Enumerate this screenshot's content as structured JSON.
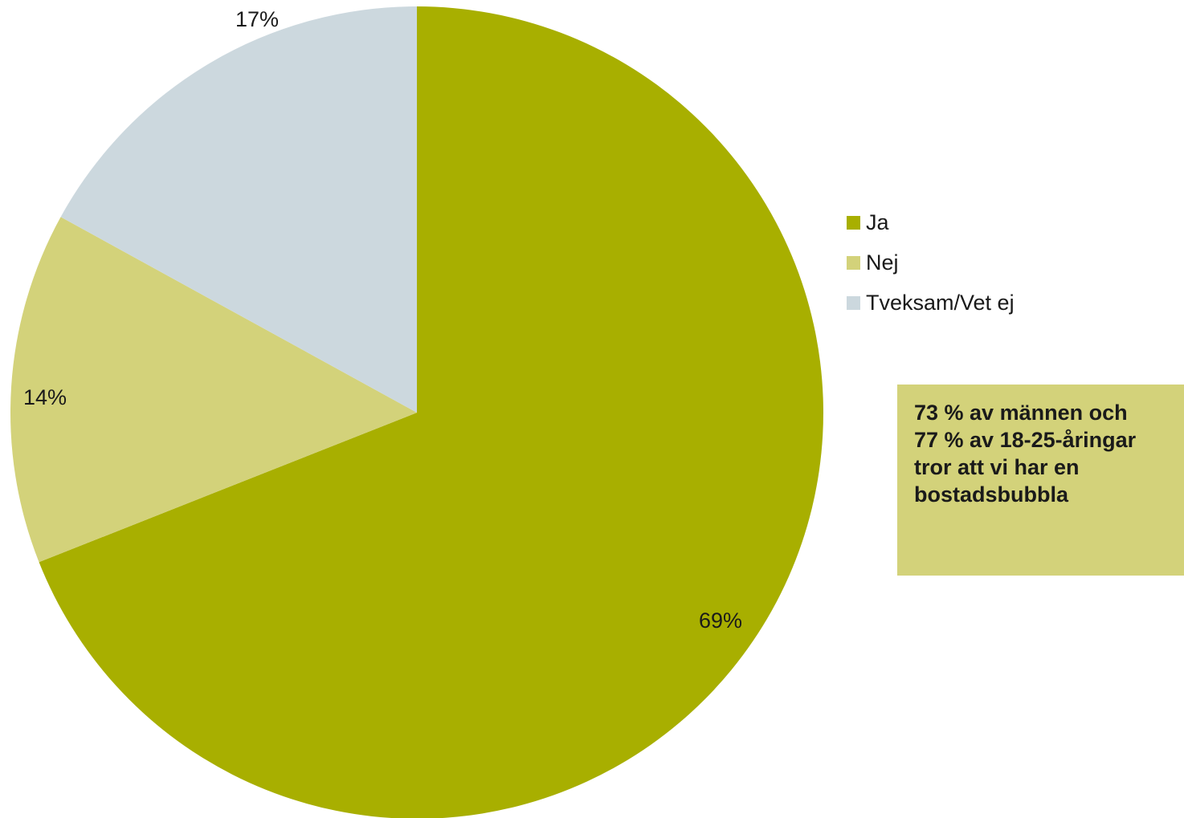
{
  "chart_data": {
    "type": "pie",
    "start_angle_deg": 0,
    "direction": "clockwise",
    "slices": [
      {
        "name": "Ja",
        "value": 69,
        "label": "69%",
        "color": "#a8af00"
      },
      {
        "name": "Nej",
        "value": 14,
        "label": "14%",
        "color": "#d3d27a"
      },
      {
        "name": "Tveksam/Vet ej",
        "value": 17,
        "label": "17%",
        "color": "#ccd8de"
      }
    ],
    "legend_position": "right"
  },
  "legend": {
    "items": [
      {
        "label": "Ja",
        "color": "#a8af00"
      },
      {
        "label": "Nej",
        "color": "#d3d27a"
      },
      {
        "label": "Tveksam/Vet ej",
        "color": "#ccd8de"
      }
    ]
  },
  "note": {
    "lines": [
      "73 % av männen och",
      "77 % av 18-25-åringar",
      "tror att vi har en",
      "bostadsbubbla"
    ],
    "background": "#d3d27a"
  }
}
